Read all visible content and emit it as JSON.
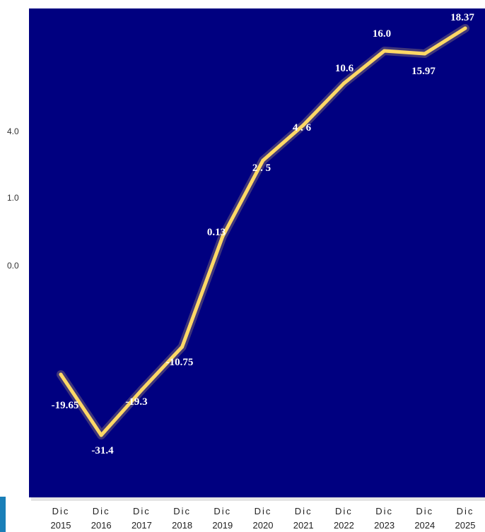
{
  "chart_data": {
    "type": "line",
    "title": "",
    "xlabel": "",
    "ylabel": "",
    "categories": [
      [
        "Dic",
        "2015"
      ],
      [
        "Dic",
        "2016"
      ],
      [
        "Dic",
        "2017"
      ],
      [
        "Dic",
        "2018"
      ],
      [
        "Dic",
        "2019"
      ],
      [
        "Dic",
        "2020"
      ],
      [
        "Dic",
        "2021"
      ],
      [
        "Dic",
        "2022"
      ],
      [
        "Dic",
        "2023"
      ],
      [
        "Dic",
        "2024"
      ],
      [
        "Dic",
        "2025"
      ]
    ],
    "series": [
      {
        "values": [
          -19.65,
          -31.4,
          -19.3,
          -10.75,
          0.13,
          2.5,
          4.6,
          10.6,
          16.0,
          15.97,
          18.37
        ],
        "labels": [
          "-19.65",
          "-31.4",
          "-19.3",
          "-10.75",
          "0.13",
          "2 . 5",
          "4 . 6",
          "10.6",
          "16.0",
          "15.97",
          "18.37"
        ]
      }
    ],
    "y_ticks": [
      {
        "value": 4.0,
        "label": "4.0"
      },
      {
        "value": 1.0,
        "label": "1.0"
      },
      {
        "value": 0.0,
        "label": "0.0"
      }
    ],
    "grid": false,
    "colors": {
      "plot_background": "#000080",
      "line": "#FFD866",
      "data_label": "#ffffff",
      "accent": "#1A7FB8"
    }
  }
}
